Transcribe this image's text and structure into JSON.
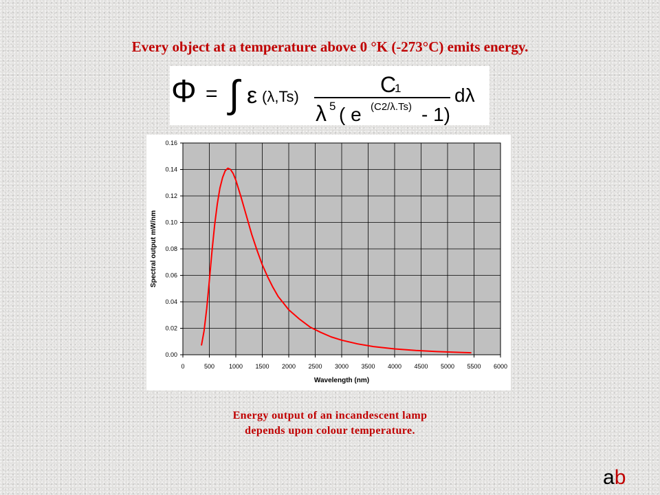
{
  "slide": {
    "title": "Every object at a temperature above 0 °K (-273°C) emits energy.",
    "caption_line1": "Energy output of an incandescent lamp",
    "caption_line2": "depends upon colour temperature.",
    "logo_a": "a",
    "logo_b": "b"
  },
  "formula": {
    "lhs": "Φ",
    "equals": "=",
    "integral": "∫",
    "epsilon": "ε",
    "args": "(λ,Ts)",
    "numerator": "C",
    "numerator_sub": "1",
    "denom_lambda": "λ",
    "denom_power": "5",
    "denom_open": "( e",
    "denom_exp": "(C2/λ.Ts)",
    "denom_close": "- 1)",
    "differential": "dλ"
  },
  "colors": {
    "accent": "#c00000",
    "curve": "#ff0000",
    "plot_background": "#c0c0c0"
  },
  "chart_data": {
    "type": "line",
    "xlabel": "Wavelength (nm)",
    "ylabel": "Spectral output mW/nm",
    "xlim": [
      0,
      6000
    ],
    "ylim": [
      0,
      0.16
    ],
    "xticks": [
      0,
      500,
      1000,
      1500,
      2000,
      2500,
      3000,
      3500,
      4000,
      4500,
      5000,
      5500,
      6000
    ],
    "yticks": [
      "0.00",
      "0.02",
      "0.04",
      "0.06",
      "0.08",
      "0.10",
      "0.12",
      "0.14",
      "0.16"
    ],
    "grid": true,
    "series": [
      {
        "x": [
          350,
          400,
          450,
          500,
          550,
          600,
          650,
          700,
          750,
          800,
          850,
          900,
          950,
          1000,
          1100,
          1200,
          1300,
          1400,
          1500,
          1600,
          1700,
          1800,
          1900,
          2000,
          2200,
          2400,
          2600,
          2800,
          3000,
          3300,
          3600,
          4000,
          4400,
          4800,
          5200,
          5450
        ],
        "y": [
          0.007,
          0.018,
          0.035,
          0.056,
          0.078,
          0.098,
          0.114,
          0.126,
          0.134,
          0.139,
          0.141,
          0.14,
          0.137,
          0.132,
          0.119,
          0.105,
          0.091,
          0.079,
          0.068,
          0.059,
          0.051,
          0.044,
          0.039,
          0.034,
          0.027,
          0.021,
          0.017,
          0.0135,
          0.011,
          0.0082,
          0.0062,
          0.0044,
          0.0032,
          0.0024,
          0.0018,
          0.0015
        ]
      }
    ]
  }
}
